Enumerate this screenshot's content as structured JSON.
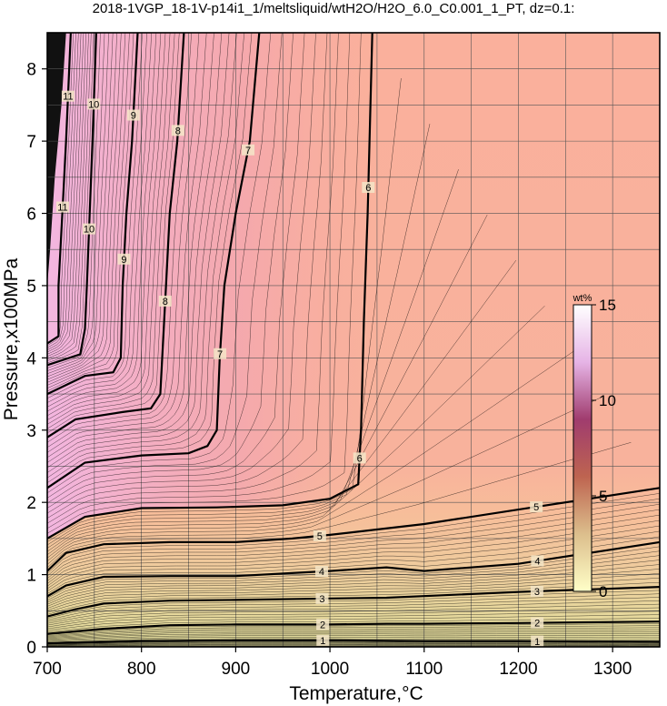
{
  "title": "2018-1VGP_18-1V-p14i1_1/meltsliquid/wtH2O/H2O_6.0_C0.001_1_PT, dz=0.1:",
  "chart_data": {
    "type": "heatmap",
    "title": "2018-1VGP_18-1V-p14i1_1/meltsliquid/wtH2O/H2O_6.0_C0.001_1_PT, dz=0.1:",
    "xlabel": "Temperature,°C",
    "ylabel": "Pressure,x100MPa",
    "xlim": [
      700,
      1350
    ],
    "ylim": [
      0,
      8.5
    ],
    "x_ticks": [
      "700",
      "800",
      "900",
      "1000",
      "1100",
      "1200",
      "1300"
    ],
    "y_ticks": [
      "0",
      "1",
      "2",
      "3",
      "4",
      "5",
      "6",
      "7",
      "8"
    ],
    "grid": true,
    "contour_interval": 0.1,
    "colorbar": {
      "label": "wt%",
      "ticks": [
        "0",
        "5",
        "10",
        "15"
      ],
      "range": [
        0,
        15
      ],
      "colors": [
        "#ffffc8",
        "#dcbe8c",
        "#be6450",
        "#a03c6e",
        "#e6b4e6",
        "#ffffff"
      ]
    },
    "major_contours": [
      {
        "label": "1",
        "level": 1,
        "points": [
          [
            700,
            0.05
          ],
          [
            800,
            0.08
          ],
          [
            900,
            0.09
          ],
          [
            1000,
            0.09
          ],
          [
            1100,
            0.08
          ],
          [
            1200,
            0.08
          ],
          [
            1350,
            0.07
          ]
        ]
      },
      {
        "label": "2",
        "level": 2,
        "points": [
          [
            700,
            0.18
          ],
          [
            760,
            0.25
          ],
          [
            830,
            0.3
          ],
          [
            900,
            0.31
          ],
          [
            1000,
            0.31
          ],
          [
            1060,
            0.32
          ],
          [
            1100,
            0.32
          ],
          [
            1200,
            0.33
          ],
          [
            1350,
            0.35
          ]
        ]
      },
      {
        "label": "3",
        "level": 3,
        "points": [
          [
            700,
            0.42
          ],
          [
            730,
            0.52
          ],
          [
            760,
            0.6
          ],
          [
            830,
            0.64
          ],
          [
            900,
            0.65
          ],
          [
            1000,
            0.67
          ],
          [
            1060,
            0.68
          ],
          [
            1130,
            0.72
          ],
          [
            1200,
            0.76
          ],
          [
            1350,
            0.83
          ]
        ]
      },
      {
        "label": "4",
        "level": 4,
        "points": [
          [
            700,
            0.7
          ],
          [
            720,
            0.85
          ],
          [
            760,
            0.97
          ],
          [
            830,
            0.98
          ],
          [
            900,
            0.98
          ],
          [
            1000,
            1.05
          ],
          [
            1060,
            1.1
          ],
          [
            1100,
            1.05
          ],
          [
            1200,
            1.15
          ],
          [
            1350,
            1.45
          ]
        ]
      },
      {
        "label": "5",
        "level": 5,
        "points": [
          [
            700,
            1.05
          ],
          [
            720,
            1.3
          ],
          [
            760,
            1.42
          ],
          [
            830,
            1.45
          ],
          [
            900,
            1.45
          ],
          [
            960,
            1.5
          ],
          [
            1000,
            1.55
          ],
          [
            1100,
            1.7
          ],
          [
            1200,
            1.9
          ],
          [
            1350,
            2.2
          ]
        ]
      },
      {
        "label": "6",
        "level": 6,
        "points": [
          [
            700,
            1.5
          ],
          [
            740,
            1.8
          ],
          [
            800,
            1.92
          ],
          [
            880,
            1.93
          ],
          [
            950,
            1.96
          ],
          [
            1000,
            2.05
          ],
          [
            1030,
            2.25
          ],
          [
            1033,
            3.0
          ],
          [
            1036,
            4.5
          ],
          [
            1040,
            6.0
          ],
          [
            1045,
            8.5
          ]
        ]
      },
      {
        "label": "7",
        "level": 7,
        "points": [
          [
            700,
            2.2
          ],
          [
            740,
            2.55
          ],
          [
            800,
            2.65
          ],
          [
            850,
            2.68
          ],
          [
            870,
            2.78
          ],
          [
            880,
            3.0
          ],
          [
            883,
            4.0
          ],
          [
            888,
            5.0
          ],
          [
            900,
            6.0
          ],
          [
            915,
            7.0
          ],
          [
            925,
            8.5
          ]
        ]
      },
      {
        "label": "8",
        "level": 8,
        "points": [
          [
            700,
            2.9
          ],
          [
            730,
            3.15
          ],
          [
            780,
            3.25
          ],
          [
            810,
            3.3
          ],
          [
            820,
            3.5
          ],
          [
            822,
            4.0
          ],
          [
            826,
            5.0
          ],
          [
            830,
            6.0
          ],
          [
            838,
            7.0
          ],
          [
            845,
            8.5
          ]
        ]
      },
      {
        "label": "9",
        "level": 9,
        "points": [
          [
            700,
            3.5
          ],
          [
            740,
            3.75
          ],
          [
            770,
            3.8
          ],
          [
            778,
            4.0
          ],
          [
            780,
            5.0
          ],
          [
            784,
            6.0
          ],
          [
            790,
            7.0
          ],
          [
            796,
            8.5
          ]
        ]
      },
      {
        "label": "10",
        "level": 10,
        "points": [
          [
            700,
            3.9
          ],
          [
            735,
            4.05
          ],
          [
            740,
            4.4
          ],
          [
            742,
            5.0
          ],
          [
            745,
            6.0
          ],
          [
            748,
            7.0
          ],
          [
            752,
            8.5
          ]
        ]
      },
      {
        "label": "11",
        "level": 11,
        "points": [
          [
            700,
            4.2
          ],
          [
            712,
            4.3
          ],
          [
            712,
            5.0
          ],
          [
            716,
            6.0
          ],
          [
            720,
            7.0
          ],
          [
            725,
            8.5
          ]
        ]
      }
    ]
  }
}
